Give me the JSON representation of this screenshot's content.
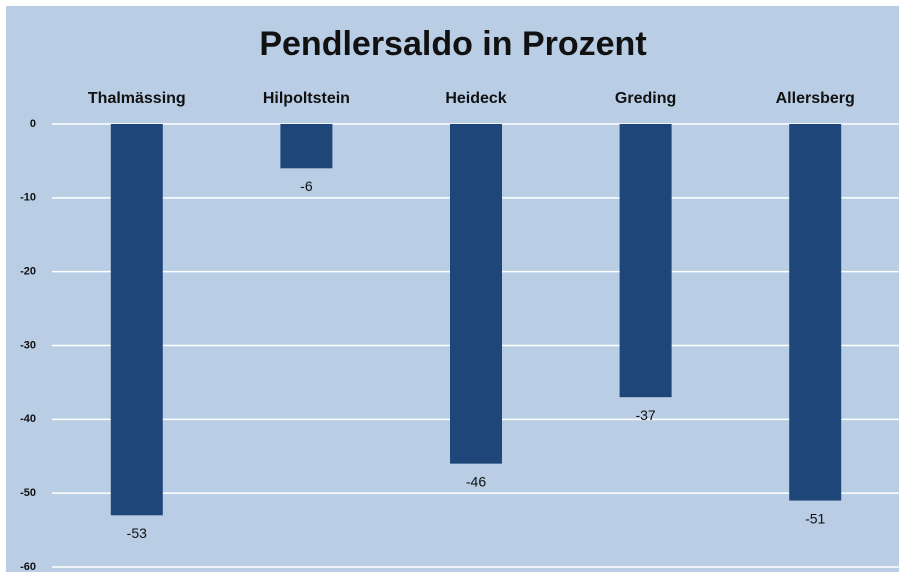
{
  "chart_data": {
    "type": "bar",
    "title": "Pendlersaldo in Prozent",
    "categories": [
      "Thalmässing",
      "Hilpoltstein",
      "Heideck",
      "Greding",
      "Allersberg"
    ],
    "values": [
      -53,
      -6,
      -46,
      -37,
      -51
    ],
    "color": "#1f4679",
    "ylim": [
      -60,
      0
    ],
    "yticks": [
      0,
      -10,
      -20,
      -30,
      -40,
      -50,
      -60
    ],
    "grid": true
  }
}
